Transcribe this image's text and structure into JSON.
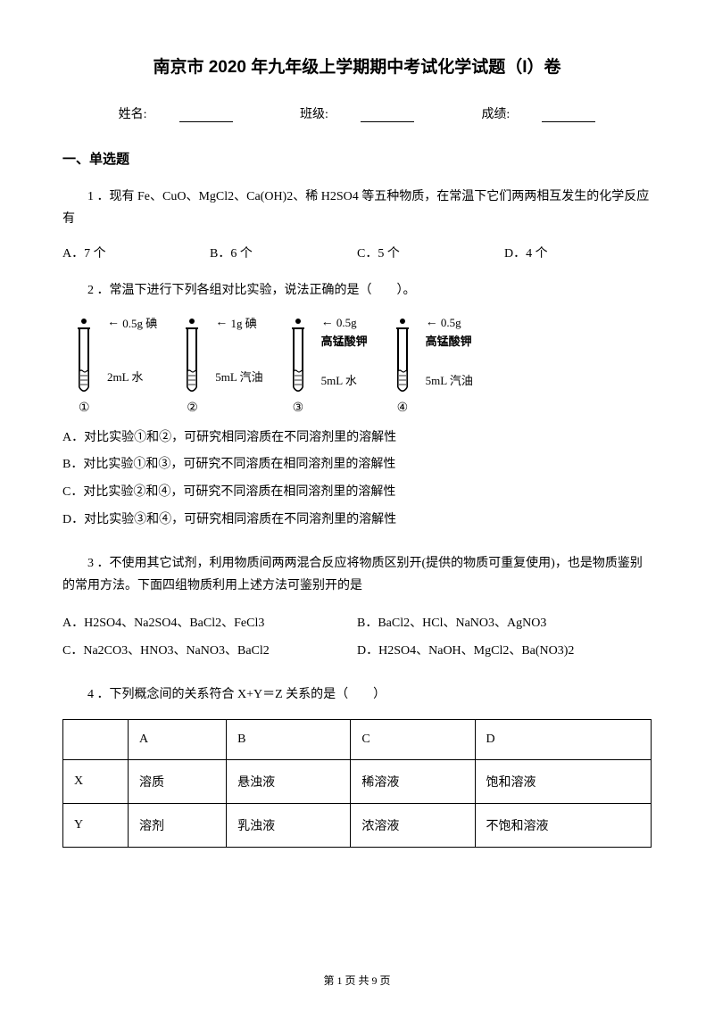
{
  "title": "南京市 2020 年九年级上学期期中考试化学试题（I）卷",
  "form": {
    "name_label": "姓名:",
    "class_label": "班级:",
    "score_label": "成绩:"
  },
  "section1": "一、单选题",
  "q1": {
    "text": "1 ．现有 Fe、CuO、MgCl2、Ca(OH)2、稀 H2SO4 等五种物质，在常温下它们两两相互发生的化学反应有",
    "a": "A．7 个",
    "b": "B．6 个",
    "c": "C．5 个",
    "d": "D．4 个"
  },
  "q2": {
    "text": "2 ．常温下进行下列各组对比实验，说法正确的是（　　）。",
    "tubes": [
      {
        "top": "0.5g 碘",
        "mid": "2mL 水",
        "num": "①"
      },
      {
        "top": "1g 碘",
        "mid": "5mL 汽油",
        "num": "②"
      },
      {
        "top": "0.5g",
        "top2": "高锰酸钾",
        "mid": "5mL 水",
        "num": "③"
      },
      {
        "top": "0.5g",
        "top2": "高锰酸钾",
        "mid": "5mL 汽油",
        "num": "④"
      }
    ],
    "a": "A．对比实验①和②，可研究相同溶质在不同溶剂里的溶解性",
    "b": "B．对比实验①和③，可研究不同溶质在相同溶剂里的溶解性",
    "c": "C．对比实验②和④，可研究不同溶质在相同溶剂里的溶解性",
    "d": "D．对比实验③和④，可研究相同溶质在不同溶剂里的溶解性"
  },
  "q3": {
    "text": "3 ．不使用其它试剂，利用物质间两两混合反应将物质区别开(提供的物质可重复使用)，也是物质鉴别的常用方法。下面四组物质利用上述方法可鉴别开的是",
    "a": "A．H2SO4、Na2SO4、BaCl2、FeCl3",
    "b": "B．BaCl2、HCl、NaNO3、AgNO3",
    "c": "C．Na2CO3、HNO3、NaNO3、BaCl2",
    "d": "D．H2SO4、NaOH、MgCl2、Ba(NO3)2"
  },
  "q4": {
    "text": "4 ．下列概念间的关系符合 X+Y＝Z 关系的是（　　）",
    "headers": [
      "",
      "A",
      "B",
      "C",
      "D"
    ],
    "rows": [
      [
        "X",
        "溶质",
        "悬浊液",
        "稀溶液",
        "饱和溶液"
      ],
      [
        "Y",
        "溶剂",
        "乳浊液",
        "浓溶液",
        "不饱和溶液"
      ]
    ]
  },
  "footer": "第 1 页 共 9 页"
}
